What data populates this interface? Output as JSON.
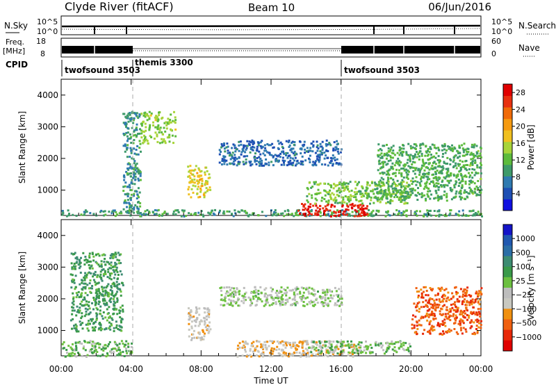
{
  "header": {
    "station": "Clyde River (fitACF)",
    "beam": "Beam 10",
    "date": "06/Jun/2016"
  },
  "strip_sky": {
    "left_label": "N.Sky",
    "right_label": "N.Search",
    "left_ticks": [
      "10^5",
      "10^0"
    ],
    "right_ticks": [
      "10^5",
      "10^0"
    ]
  },
  "strip_freq": {
    "left_label_1": "Freq.",
    "left_label_2": "[MHz]",
    "right_label": "Nave",
    "left_ticks": [
      "18",
      "8"
    ],
    "right_ticks": [
      "60",
      "0"
    ]
  },
  "cpid": {
    "label": "CPID",
    "segments": [
      {
        "name": "twofsound 3503",
        "start_hour": 0
      },
      {
        "name": "themis 3300",
        "start_hour": 4
      },
      {
        "name": "twofsound 3503",
        "start_hour": 16
      }
    ]
  },
  "colors": {
    "power_scale": [
      "#1010e0",
      "#1e4fb4",
      "#2f7ab0",
      "#3e9a6a",
      "#5dbb3c",
      "#a8d43a",
      "#f0c020",
      "#f59a10",
      "#f06a08",
      "#e83010",
      "#e00000"
    ],
    "velocity_scale": [
      "#1414c8",
      "#2058b0",
      "#2b6ea6",
      "#3d8c72",
      "#3a9a4a",
      "#6cc040",
      "#bdbdbd",
      "#c8c8c0",
      "#f09010",
      "#f06010",
      "#e82808",
      "#e00000"
    ]
  },
  "chart_data": [
    {
      "type": "heatmap",
      "title": "",
      "xlabel": "Time UT",
      "ylabel": "Slant Range [km]",
      "x_range_hours": [
        0,
        24
      ],
      "x_ticks": [
        "00:00",
        "04:00",
        "08:00",
        "12:00",
        "16:00",
        "20:00",
        "00:00"
      ],
      "y_range_km": [
        200,
        4500
      ],
      "y_ticks": [
        "1000",
        "2000",
        "3000",
        "4000"
      ],
      "colorbar_label": "Power [dB]",
      "colorbar_ticks": [
        "4",
        "8",
        "12",
        "16",
        "20",
        "24",
        "28"
      ],
      "colorbar_range": [
        0,
        30
      ],
      "regions": [
        {
          "hours": [
            0,
            24
          ],
          "km": [
            200,
            400
          ],
          "value": 10
        },
        {
          "hours": [
            13.5,
            17.5
          ],
          "km": [
            200,
            600
          ],
          "value": 27
        },
        {
          "hours": [
            14,
            20
          ],
          "km": [
            600,
            1300
          ],
          "value": 13
        },
        {
          "hours": [
            3.5,
            4.5
          ],
          "km": [
            300,
            3500
          ],
          "value": 9
        },
        {
          "hours": [
            7.2,
            8.5
          ],
          "km": [
            800,
            1800
          ],
          "value": 17
        },
        {
          "hours": [
            18,
            24
          ],
          "km": [
            700,
            2500
          ],
          "value": 11
        },
        {
          "hours": [
            9,
            16
          ],
          "km": [
            1800,
            2600
          ],
          "value": 6
        },
        {
          "hours": [
            4.5,
            6.5
          ],
          "km": [
            2500,
            3500
          ],
          "value": 14
        }
      ]
    },
    {
      "type": "heatmap",
      "title": "",
      "xlabel": "Time UT",
      "ylabel": "Slant Range [km]",
      "x_range_hours": [
        0,
        24
      ],
      "x_ticks": [
        "00:00",
        "04:00",
        "08:00",
        "12:00",
        "16:00",
        "20:00",
        "00:00"
      ],
      "y_range_km": [
        200,
        4500
      ],
      "y_ticks": [
        "1000",
        "2000",
        "3000",
        "4000"
      ],
      "colorbar_label": "Velocity [m s⁻¹]",
      "colorbar_ticks": [
        "1000",
        "500",
        "100",
        "25",
        "−25",
        "−100",
        "−500",
        "−1000"
      ],
      "colorbar_range": [
        -1000,
        1000
      ],
      "regions": [
        {
          "hours": [
            0,
            4
          ],
          "km": [
            200,
            700
          ],
          "value": 100
        },
        {
          "hours": [
            10,
            17
          ],
          "km": [
            200,
            700
          ],
          "value": -300
        },
        {
          "hours": [
            14,
            20
          ],
          "km": [
            300,
            700
          ],
          "value": 80
        },
        {
          "hours": [
            9,
            16
          ],
          "km": [
            1800,
            2400
          ],
          "value": 0
        },
        {
          "hours": [
            20,
            24
          ],
          "km": [
            900,
            2400
          ],
          "value": -600
        },
        {
          "hours": [
            7.2,
            8.5
          ],
          "km": [
            700,
            1800
          ],
          "value": -200
        },
        {
          "hours": [
            0.5,
            3.5
          ],
          "km": [
            1000,
            3500
          ],
          "value": 300
        }
      ]
    }
  ]
}
